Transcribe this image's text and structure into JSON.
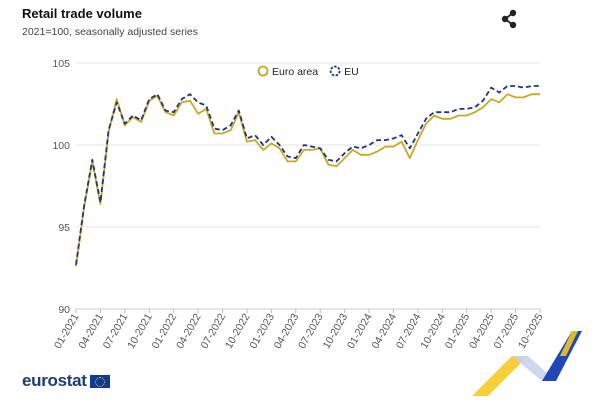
{
  "header": {
    "title": "Retail trade volume",
    "subtitle": "2021=100, seasonally adjusted series"
  },
  "brand": {
    "wordmark": "eurostat"
  },
  "colors": {
    "euro_area": "#c8a828",
    "eu": "#1f3577",
    "grid": "#e6e6e6",
    "axis": "#cccccc",
    "deco_yellow": "#f5c518",
    "deco_blue": "#1f47b8"
  },
  "icons": {
    "share": "share-icon",
    "flag": "eu-flag-icon"
  },
  "chart_data": {
    "type": "line",
    "title": "Retail trade volume",
    "subtitle": "2021=100, seasonally adjusted series",
    "xlabel": "",
    "ylabel": "",
    "ylim": [
      90,
      105
    ],
    "yticks": [
      90,
      95,
      100,
      105
    ],
    "grid": true,
    "legend_position": "top-center",
    "x": [
      "01-2021",
      "02-2021",
      "03-2021",
      "04-2021",
      "05-2021",
      "06-2021",
      "07-2021",
      "08-2021",
      "09-2021",
      "10-2021",
      "11-2021",
      "12-2021",
      "01-2022",
      "02-2022",
      "03-2022",
      "04-2022",
      "05-2022",
      "06-2022",
      "07-2022",
      "08-2022",
      "09-2022",
      "10-2022",
      "11-2022",
      "12-2022",
      "01-2023",
      "02-2023",
      "03-2023",
      "04-2023",
      "05-2023",
      "06-2023",
      "07-2023",
      "08-2023",
      "09-2023",
      "10-2023",
      "11-2023",
      "12-2023",
      "01-2024",
      "02-2024",
      "03-2024",
      "04-2024",
      "05-2024",
      "06-2024",
      "07-2024",
      "08-2024",
      "09-2024",
      "10-2024",
      "11-2024",
      "12-2024",
      "01-2025",
      "02-2025",
      "03-2025",
      "04-2025",
      "05-2025",
      "06-2025",
      "07-2025",
      "08-2025",
      "09-2025",
      "10-2025"
    ],
    "xtick_labels": [
      "01-2021",
      "04-2021",
      "07-2021",
      "10-2021",
      "01-2022",
      "04-2022",
      "07-2022",
      "10-2022",
      "01-2023",
      "04-2023",
      "07-2023",
      "10-2023",
      "01-2024",
      "04-2024",
      "07-2024",
      "10-2024",
      "01-2025",
      "04-2025",
      "07-2025",
      "10-2025"
    ],
    "series": [
      {
        "name": "Euro area",
        "color": "#c8a828",
        "dash": "solid",
        "values": [
          92.6,
          96.2,
          99.0,
          96.4,
          100.8,
          102.8,
          101.2,
          101.7,
          101.4,
          102.7,
          103.0,
          102.0,
          101.8,
          102.6,
          102.7,
          101.9,
          102.2,
          100.7,
          100.7,
          100.9,
          102.0,
          100.2,
          100.3,
          99.7,
          100.1,
          99.8,
          99.0,
          99.0,
          99.7,
          99.7,
          99.8,
          98.8,
          98.7,
          99.2,
          99.7,
          99.4,
          99.4,
          99.6,
          99.9,
          99.9,
          100.2,
          99.2,
          100.3,
          101.3,
          101.8,
          101.6,
          101.6,
          101.8,
          101.8,
          102.0,
          102.3,
          102.8,
          102.6,
          103.1,
          102.9,
          102.9,
          103.1,
          103.1
        ]
      },
      {
        "name": "EU",
        "color": "#1f3577",
        "dash": "dashed",
        "values": [
          92.7,
          96.3,
          99.1,
          96.5,
          100.9,
          102.6,
          101.3,
          101.8,
          101.5,
          102.8,
          103.1,
          102.1,
          102.0,
          102.8,
          103.1,
          102.6,
          102.4,
          101.0,
          100.9,
          101.2,
          102.1,
          100.4,
          100.6,
          100.0,
          100.5,
          100.0,
          99.3,
          99.2,
          100.0,
          99.9,
          99.8,
          99.1,
          99.0,
          99.5,
          99.9,
          99.8,
          100.0,
          100.3,
          100.3,
          100.4,
          100.6,
          99.8,
          100.7,
          101.6,
          102.0,
          102.0,
          102.0,
          102.2,
          102.2,
          102.3,
          102.7,
          103.5,
          103.2,
          103.6,
          103.6,
          103.5,
          103.6,
          103.6
        ]
      }
    ]
  }
}
